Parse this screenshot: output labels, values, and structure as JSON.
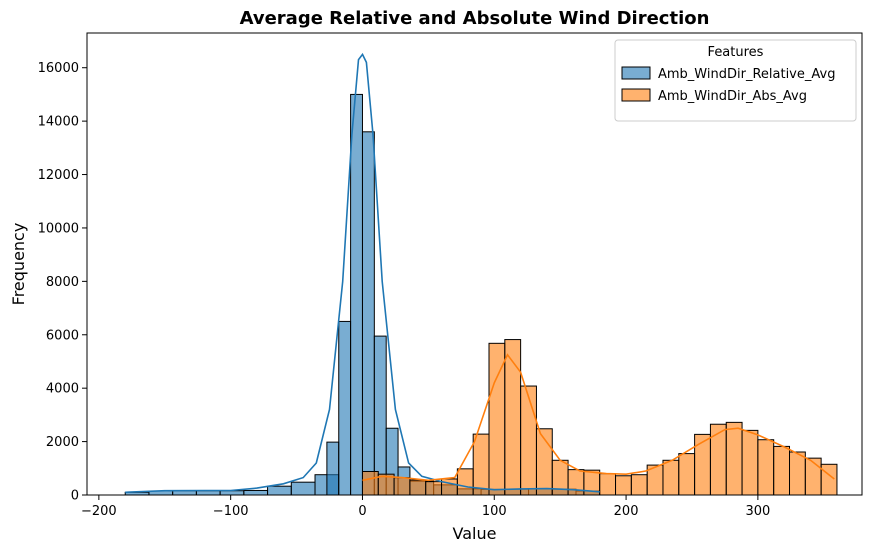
{
  "chart_data": {
    "type": "bar",
    "title": "Average Relative and Absolute Wind Direction",
    "xlabel": "Value",
    "ylabel": "Frequency",
    "xlim": [
      -209,
      379
    ],
    "ylim": [
      0,
      17300
    ],
    "xticks": [
      -200,
      -100,
      0,
      100,
      200,
      300
    ],
    "yticks": [
      0,
      2000,
      4000,
      6000,
      8000,
      10000,
      12000,
      14000,
      16000
    ],
    "grid": false,
    "legend": {
      "title": "Features",
      "placement": "top-right"
    },
    "bin_width": 18,
    "series": [
      {
        "name": "Amb_WindDir_Relative_Avg",
        "color": "#1f77b4",
        "bins": [
          [
            -180,
            100
          ],
          [
            -162,
            150
          ],
          [
            -144,
            160
          ],
          [
            -126,
            160
          ],
          [
            -108,
            160
          ],
          [
            -90,
            170
          ],
          [
            -72,
            330
          ],
          [
            -54,
            480
          ],
          [
            -36,
            760
          ],
          [
            -27,
            1980
          ],
          [
            -18,
            6500
          ],
          [
            -9,
            15000
          ],
          [
            0,
            13600
          ],
          [
            9,
            5950
          ],
          [
            18,
            2500
          ],
          [
            27,
            1050
          ],
          [
            36,
            520
          ],
          [
            54,
            380
          ],
          [
            72,
            230
          ],
          [
            90,
            210
          ],
          [
            108,
            220
          ],
          [
            126,
            230
          ],
          [
            144,
            220
          ],
          [
            162,
            150
          ]
        ],
        "kde": [
          [
            -180,
            100
          ],
          [
            -150,
            160
          ],
          [
            -120,
            170
          ],
          [
            -100,
            170
          ],
          [
            -80,
            260
          ],
          [
            -60,
            420
          ],
          [
            -45,
            650
          ],
          [
            -35,
            1200
          ],
          [
            -25,
            3200
          ],
          [
            -15,
            8000
          ],
          [
            -8,
            13500
          ],
          [
            -3,
            16300
          ],
          [
            0,
            16500
          ],
          [
            3,
            16200
          ],
          [
            8,
            13500
          ],
          [
            15,
            8000
          ],
          [
            25,
            3200
          ],
          [
            35,
            1200
          ],
          [
            45,
            700
          ],
          [
            60,
            500
          ],
          [
            80,
            300
          ],
          [
            100,
            200
          ],
          [
            120,
            230
          ],
          [
            140,
            240
          ],
          [
            160,
            200
          ],
          [
            180,
            120
          ]
        ]
      },
      {
        "name": "Amb_WindDir_Abs_Avg",
        "color": "#ff7f0e",
        "bins": [
          [
            0,
            880
          ],
          [
            12,
            780
          ],
          [
            24,
            650
          ],
          [
            36,
            560
          ],
          [
            48,
            500
          ],
          [
            60,
            600
          ],
          [
            72,
            980
          ],
          [
            84,
            2280
          ],
          [
            96,
            5680
          ],
          [
            108,
            5820
          ],
          [
            120,
            4080
          ],
          [
            132,
            2480
          ],
          [
            144,
            1300
          ],
          [
            156,
            950
          ],
          [
            168,
            930
          ],
          [
            180,
            800
          ],
          [
            192,
            720
          ],
          [
            204,
            760
          ],
          [
            216,
            1120
          ],
          [
            228,
            1300
          ],
          [
            240,
            1550
          ],
          [
            252,
            2270
          ],
          [
            264,
            2650
          ],
          [
            276,
            2720
          ],
          [
            288,
            2420
          ],
          [
            300,
            2070
          ],
          [
            312,
            1820
          ],
          [
            324,
            1610
          ],
          [
            336,
            1380
          ],
          [
            348,
            1150
          ]
        ],
        "kde": [
          [
            0,
            550
          ],
          [
            15,
            700
          ],
          [
            30,
            650
          ],
          [
            50,
            550
          ],
          [
            70,
            650
          ],
          [
            85,
            2000
          ],
          [
            100,
            4200
          ],
          [
            110,
            5250
          ],
          [
            120,
            4600
          ],
          [
            135,
            2300
          ],
          [
            150,
            1300
          ],
          [
            165,
            900
          ],
          [
            185,
            800
          ],
          [
            200,
            780
          ],
          [
            215,
            900
          ],
          [
            235,
            1300
          ],
          [
            255,
            1900
          ],
          [
            275,
            2450
          ],
          [
            285,
            2500
          ],
          [
            300,
            2250
          ],
          [
            320,
            1800
          ],
          [
            340,
            1300
          ],
          [
            358,
            600
          ]
        ]
      }
    ]
  }
}
